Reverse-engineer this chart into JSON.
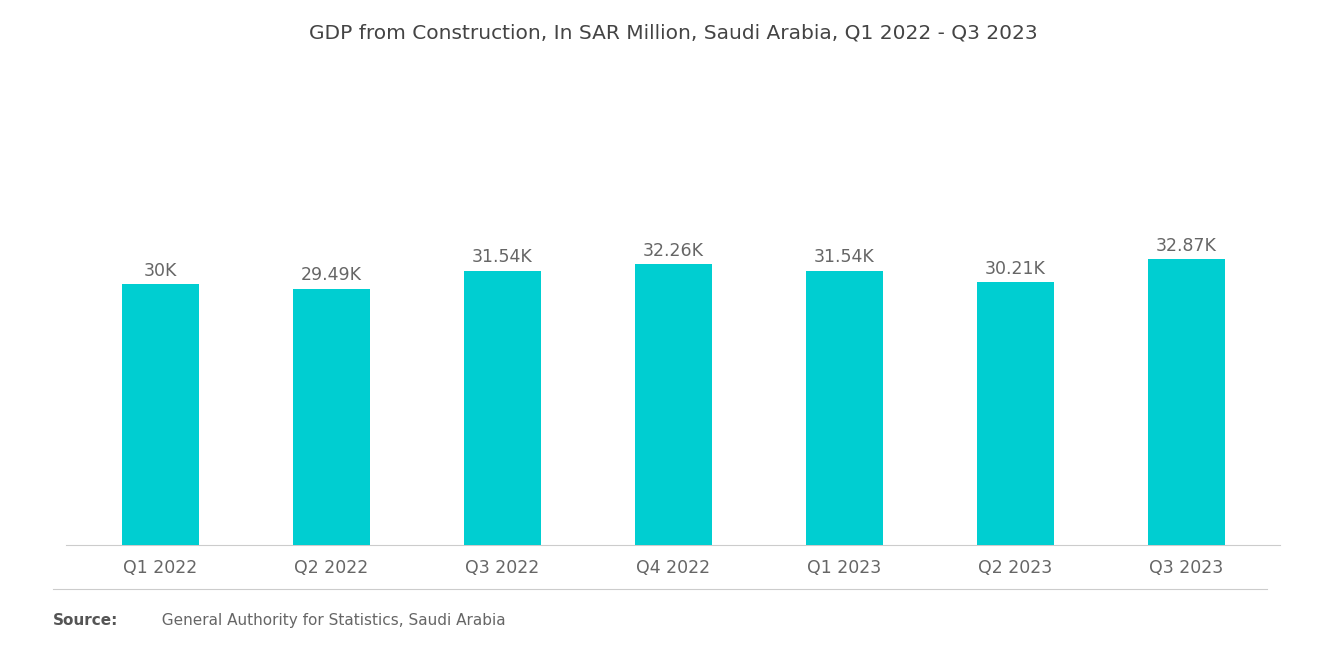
{
  "title": "GDP from Construction, In SAR Million, Saudi Arabia, Q1 2022 - Q3 2023",
  "categories": [
    "Q1 2022",
    "Q2 2022",
    "Q3 2022",
    "Q4 2022",
    "Q1 2023",
    "Q2 2023",
    "Q3 2023"
  ],
  "values": [
    30000,
    29490,
    31540,
    32260,
    31540,
    30210,
    32870
  ],
  "labels": [
    "30K",
    "29.49K",
    "31.54K",
    "32.26K",
    "31.54K",
    "30.21K",
    "32.87K"
  ],
  "bar_color": "#00CED1",
  "background_color": "#ffffff",
  "title_fontsize": 14.5,
  "label_fontsize": 12.5,
  "tick_fontsize": 12.5,
  "source_bold": "Source:",
  "source_text": "  General Authority for Statistics, Saudi Arabia",
  "ylim": [
    0,
    55000
  ],
  "bar_width": 0.45
}
